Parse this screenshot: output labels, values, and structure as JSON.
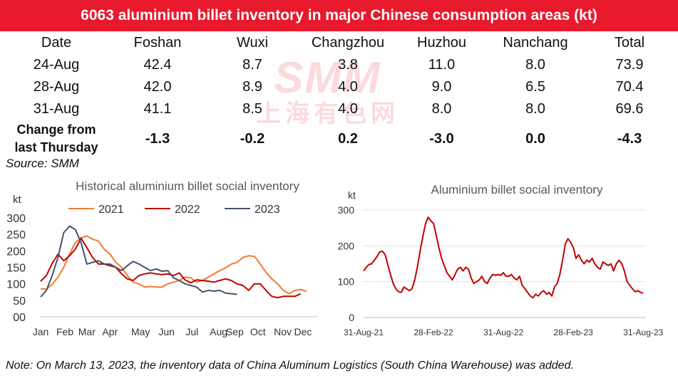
{
  "title": "6063 aluminium billet inventory in major Chinese consumption areas (kt)",
  "watermark": {
    "logo": "SMM",
    "text": "上海有色网"
  },
  "table": {
    "headers": [
      "Date",
      "Foshan",
      "Wuxi",
      "Changzhou",
      "Huzhou",
      "Nanchang",
      "Total"
    ],
    "rows": [
      [
        "24-Aug",
        "42.4",
        "8.7",
        "3.8",
        "11.0",
        "8.0",
        "73.9"
      ],
      [
        "28-Aug",
        "42.0",
        "8.9",
        "4.0",
        "9.0",
        "6.5",
        "70.4"
      ],
      [
        "31-Aug",
        "41.1",
        "8.5",
        "4.0",
        "8.0",
        "8.0",
        "69.6"
      ]
    ],
    "change_label_line1": "Change from",
    "change_label_line2": "last Thursday",
    "change_values": [
      "-1.3",
      "-0.2",
      "0.2",
      "-3.0",
      "0.0",
      "-4.3"
    ]
  },
  "source": "Source: SMM",
  "note": "Note: On March 13, 2023, the inventory data of China Aluminum Logistics (South China Warehouse) was added.",
  "chart_data": [
    {
      "type": "line",
      "title": "Historical aluminium billet social inventory",
      "ylabel": "kt",
      "ylim": [
        0,
        300
      ],
      "yticks": [
        0,
        50,
        100,
        150,
        200,
        250,
        300
      ],
      "ytick_labels": [
        "00",
        "50",
        "100",
        "150",
        "200",
        "250",
        "300"
      ],
      "xlim": [
        0,
        48
      ],
      "x_tick_labels": [
        "Jan",
        "Feb",
        "Mar",
        "Apr",
        "May",
        "Jun",
        "Jul",
        "Aug",
        "Sep",
        "Oct",
        "Nov",
        "Dec"
      ],
      "x_tick_positions": [
        0,
        4.2,
        8.0,
        12.0,
        17.3,
        21.8,
        26.2,
        30.8,
        33.6,
        37.6,
        41.9,
        45.4
      ],
      "legend_position": "top",
      "series": [
        {
          "name": "2021",
          "color": "#ed7d31",
          "x": [
            0,
            1,
            2,
            3,
            4,
            5,
            6,
            7,
            8,
            9,
            10,
            11,
            12,
            13,
            14,
            15,
            16,
            17,
            18,
            19,
            20,
            21,
            22,
            23,
            24,
            25,
            26,
            27,
            28,
            29,
            30,
            31,
            32,
            33,
            34,
            35,
            36,
            37,
            38,
            39,
            40,
            41,
            42,
            43,
            44,
            45,
            46
          ],
          "y": [
            85,
            84,
            98,
            120,
            150,
            190,
            225,
            240,
            245,
            235,
            230,
            205,
            190,
            165,
            150,
            125,
            105,
            100,
            90,
            92,
            90,
            90,
            100,
            105,
            110,
            120,
            118,
            105,
            110,
            120,
            130,
            140,
            148,
            160,
            165,
            180,
            185,
            183,
            160,
            135,
            115,
            100,
            80,
            70,
            80,
            83,
            77
          ]
        },
        {
          "name": "2022",
          "color": "#c00000",
          "x": [
            0,
            1,
            2,
            3,
            4,
            5,
            6,
            7,
            8,
            9,
            10,
            11,
            12,
            13,
            14,
            15,
            16,
            17,
            18,
            19,
            20,
            21,
            22,
            23,
            24,
            25,
            26,
            27,
            28,
            29,
            30,
            31,
            32,
            33,
            34,
            35,
            36,
            37,
            38,
            39,
            40,
            41,
            42,
            43,
            44,
            45
          ],
          "y": [
            108,
            125,
            162,
            190,
            170,
            185,
            205,
            238,
            210,
            180,
            160,
            160,
            155,
            150,
            130,
            115,
            110,
            125,
            130,
            133,
            130,
            128,
            130,
            125,
            133,
            112,
            103,
            112,
            110,
            108,
            105,
            110,
            115,
            110,
            100,
            95,
            80,
            100,
            100,
            80,
            62,
            58,
            62,
            62,
            62,
            70
          ]
        },
        {
          "name": "2023",
          "color": "#44546a",
          "x": [
            0,
            1,
            2,
            3,
            4,
            5,
            6,
            7,
            8,
            9,
            10,
            11,
            12,
            13,
            14,
            15,
            16,
            17,
            18,
            19,
            20,
            21,
            22,
            23,
            24,
            25,
            26,
            27,
            28,
            29,
            30,
            31,
            32,
            33,
            34
          ],
          "y": [
            60,
            80,
            125,
            180,
            255,
            275,
            265,
            225,
            160,
            165,
            170,
            160,
            160,
            150,
            140,
            155,
            168,
            160,
            150,
            140,
            145,
            138,
            140,
            118,
            110,
            100,
            95,
            90,
            75,
            80,
            78,
            80,
            72,
            70,
            68
          ]
        }
      ]
    },
    {
      "type": "line",
      "title": "Aluminium billet social inventory",
      "ylabel": "kt",
      "ylim": [
        0,
        300
      ],
      "yticks": [
        0,
        100,
        200,
        300
      ],
      "xlim": [
        0,
        105
      ],
      "x_tick_labels": [
        "31-Aug-21",
        "28-Feb-22",
        "31-Aug-22",
        "28-Feb-23",
        "31-Aug-23"
      ],
      "x_tick_positions": [
        0,
        26,
        52,
        78,
        104
      ],
      "series": [
        {
          "color": "#c00000",
          "x": [
            0,
            1,
            2,
            3,
            4,
            5,
            6,
            7,
            8,
            9,
            10,
            11,
            12,
            13,
            14,
            15,
            16,
            17,
            18,
            19,
            20,
            21,
            22,
            23,
            24,
            25,
            26,
            27,
            28,
            29,
            30,
            31,
            32,
            33,
            34,
            35,
            36,
            37,
            38,
            39,
            40,
            41,
            42,
            43,
            44,
            45,
            46,
            47,
            48,
            49,
            50,
            51,
            52,
            53,
            54,
            55,
            56,
            57,
            58,
            59,
            60,
            61,
            62,
            63,
            64,
            65,
            66,
            67,
            68,
            69,
            70,
            71,
            72,
            73,
            74,
            75,
            76,
            77,
            78,
            79,
            80,
            81,
            82,
            83,
            84,
            85,
            86,
            87,
            88,
            89,
            90,
            91,
            92,
            93,
            94,
            95,
            96,
            97,
            98,
            99,
            100,
            101,
            102,
            103,
            104
          ],
          "y": [
            130,
            140,
            148,
            150,
            160,
            170,
            183,
            185,
            175,
            148,
            120,
            95,
            80,
            72,
            70,
            85,
            80,
            75,
            80,
            105,
            140,
            185,
            225,
            260,
            280,
            270,
            262,
            230,
            195,
            165,
            145,
            125,
            115,
            105,
            120,
            135,
            140,
            130,
            140,
            135,
            110,
            95,
            100,
            105,
            115,
            100,
            95,
            110,
            120,
            118,
            120,
            118,
            125,
            115,
            115,
            120,
            110,
            105,
            115,
            90,
            80,
            70,
            60,
            55,
            65,
            60,
            70,
            75,
            65,
            70,
            60,
            85,
            95,
            120,
            160,
            205,
            220,
            210,
            195,
            165,
            175,
            160,
            150,
            160,
            155,
            165,
            150,
            140,
            135,
            155,
            150,
            145,
            150,
            130,
            150,
            160,
            150,
            130,
            100,
            90,
            80,
            72,
            75,
            70,
            68
          ]
        }
      ]
    }
  ]
}
